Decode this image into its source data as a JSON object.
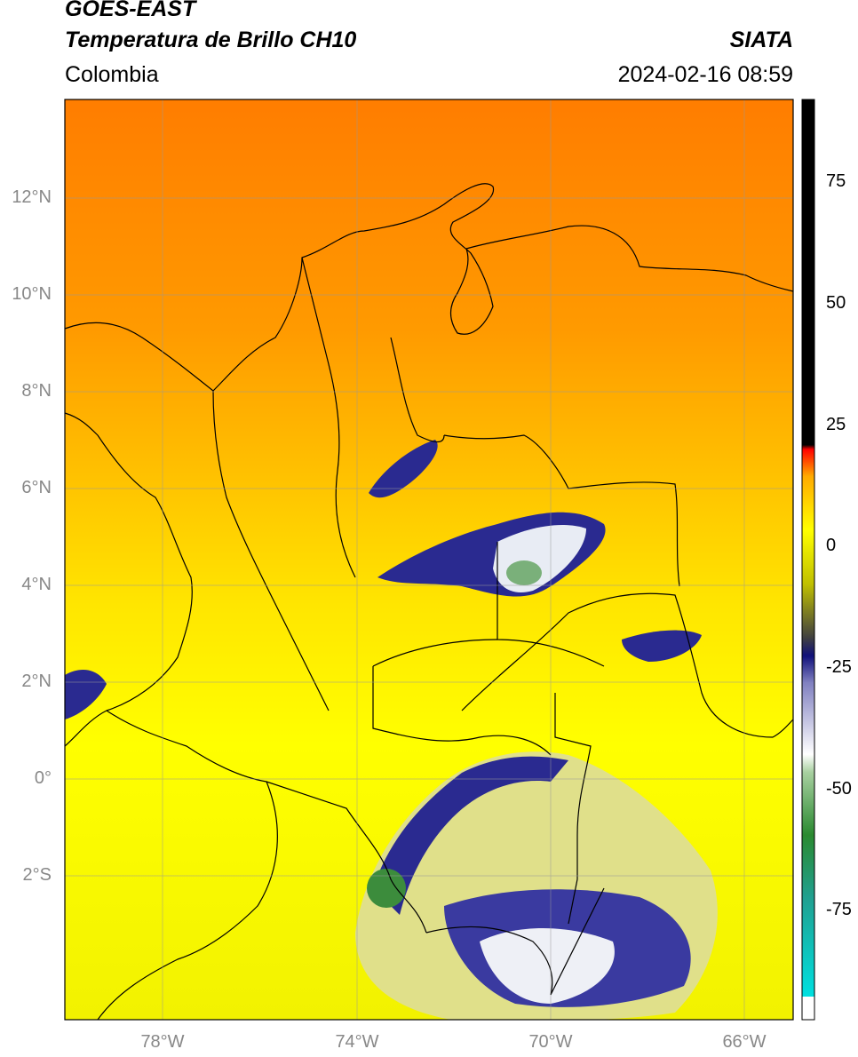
{
  "header": {
    "satellite": "GOES-EAST",
    "product": "Temperatura de Brillo CH10",
    "region": "Colombia",
    "agency": "SIATA",
    "datetime": "2024-02-16 08:59"
  },
  "map": {
    "lat_ticks": [
      "12°N",
      "10°N",
      "8°N",
      "6°N",
      "4°N",
      "2°N",
      "0°",
      "2°S"
    ],
    "lon_ticks": [
      "78°W",
      "74°W",
      "70°W",
      "66°W"
    ],
    "extent": {
      "lon_min": -80,
      "lon_max": -65,
      "lat_min": -5,
      "lat_max": 14
    }
  },
  "colorbar": {
    "ticks": [
      "75",
      "50",
      "25",
      "0",
      "-25",
      "-50",
      "-75"
    ],
    "range": [
      -95,
      90
    ],
    "colors": {
      "hot": "#000000",
      "warm": "#ff8800",
      "mild": "#ffff00",
      "cold": "#10107a",
      "colder": "#ffffff",
      "coldest": "#2a8a30",
      "extreme": "#00e0e0"
    }
  }
}
